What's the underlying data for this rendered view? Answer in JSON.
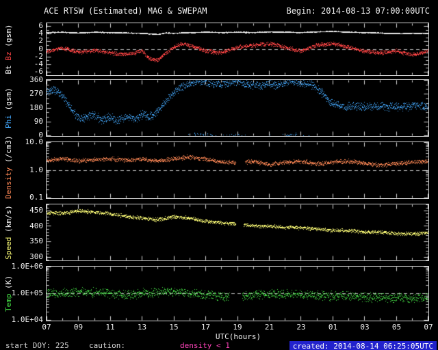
{
  "header": {
    "title": "ACE RTSW (Estimated) MAG & SWEPAM",
    "begin": "Begin: 2014-08-13 07:00:00UTC"
  },
  "footer": {
    "start_doy": "start DOY: 225",
    "caution_label": "caution:",
    "caution_value": "density < 1",
    "caution_color": "#ff44bb",
    "created": "created: 2014-08-14 06:25:05UTC",
    "created_bg": "#2222cc"
  },
  "x_axis": {
    "title": "UTC(hours)",
    "start_hour": 7,
    "end_hour": 31,
    "major_step": 2,
    "minor_step": 1,
    "tick_labels": [
      "07",
      "09",
      "11",
      "13",
      "15",
      "17",
      "19",
      "21",
      "23",
      "01",
      "03",
      "05",
      "07"
    ]
  },
  "colors": {
    "bt": "#eeeeee",
    "bz": "#ff4444",
    "phi": "#44aaff",
    "density": "#ff8855",
    "speed": "#ffff77",
    "temp": "#44dd44",
    "axis": "#d8d8d8",
    "ref_dash": "#bbbbbb"
  },
  "chart_data": [
    {
      "name": "mag",
      "type": "scatter",
      "scale": "linear",
      "ylim": [
        -6.8,
        6.8
      ],
      "minor_step": 1,
      "ref_line": 0,
      "yticks": [
        {
          "v": 6,
          "label": "6"
        },
        {
          "v": 4,
          "label": "4"
        },
        {
          "v": 2,
          "label": "2"
        },
        {
          "v": 0,
          "label": "0"
        },
        {
          "v": -2,
          "label": "-2"
        },
        {
          "v": -4,
          "label": "-4"
        },
        {
          "v": -6,
          "label": "-6"
        }
      ],
      "ylabel_parts": [
        {
          "text": "Bt ",
          "color": "#ffffff"
        },
        {
          "text": "Bz ",
          "color": "#ff4444"
        },
        {
          "text": "(gsm)",
          "color": "#ffffff"
        }
      ],
      "series": [
        {
          "name": "Bt",
          "color": "#eeeeee",
          "points_per_hour": 150,
          "jitter": 0.12,
          "seed": 11,
          "point_size": 1,
          "x": [
            7,
            8,
            9,
            10,
            11,
            12,
            13,
            14,
            14.5,
            15,
            16,
            17,
            18,
            19,
            20,
            21,
            22,
            23,
            24,
            25,
            26,
            27,
            28,
            29,
            30,
            31
          ],
          "y": [
            4.4,
            4.5,
            4.3,
            4.5,
            4.4,
            4.3,
            4.2,
            3.9,
            4.3,
            4.2,
            4.4,
            4.5,
            4.4,
            4.5,
            4.4,
            4.6,
            4.5,
            4.4,
            4.6,
            4.7,
            4.5,
            4.4,
            4.3,
            4.1,
            4.2,
            4.2
          ]
        },
        {
          "name": "Bz",
          "color": "#ff4444",
          "points_per_hour": 80,
          "jitter": 0.65,
          "seed": 22,
          "point_size": 1,
          "x": [
            7,
            8,
            9,
            10,
            11,
            12,
            13,
            13.5,
            14,
            14.5,
            15,
            15.5,
            16,
            17,
            18,
            19,
            20,
            21,
            22,
            23,
            24,
            25,
            26,
            27,
            28,
            29,
            30,
            31
          ],
          "y": [
            -0.5,
            0.3,
            -0.8,
            -0.3,
            -1.0,
            -1.5,
            -0.5,
            -2.5,
            -3.0,
            -1.0,
            0.5,
            1.5,
            1.0,
            -0.5,
            -1.0,
            0.5,
            1.0,
            1.5,
            0.5,
            -0.5,
            1.0,
            1.5,
            0.5,
            -0.5,
            -1.0,
            -0.5,
            -1.5,
            -0.5
          ]
        }
      ]
    },
    {
      "name": "phi",
      "type": "scatter",
      "scale": "linear",
      "ylim": [
        0,
        360
      ],
      "minor_step": 30,
      "yticks": [
        {
          "v": 360,
          "label": "360"
        },
        {
          "v": 270,
          "label": "270"
        },
        {
          "v": 180,
          "label": "180"
        },
        {
          "v": 90,
          "label": "90"
        },
        {
          "v": 0,
          "label": "0"
        }
      ],
      "ylabel_parts": [
        {
          "text": "Phi ",
          "color": "#44aaff"
        },
        {
          "text": "(gsm)",
          "color": "#ffffff"
        }
      ],
      "series": [
        {
          "name": "Phi",
          "color": "#44aaff",
          "points_per_hour": 70,
          "jitter": 32,
          "seed": 33,
          "point_size": 1,
          "wrap": 360,
          "x": [
            7,
            7.5,
            8,
            8.5,
            9,
            9.5,
            10,
            10.5,
            11,
            11.5,
            12,
            12.5,
            13,
            13.5,
            14,
            14.5,
            15,
            15.5,
            16,
            16.5,
            17,
            17.5,
            18,
            18.5,
            19,
            19.5,
            20,
            20.5,
            21,
            21.5,
            22,
            22.5,
            23,
            23.5,
            24,
            24.5,
            25,
            25.5,
            26,
            27,
            28,
            29,
            30,
            31
          ],
          "y": [
            280,
            295,
            260,
            180,
            110,
            120,
            130,
            100,
            120,
            95,
            125,
            105,
            140,
            120,
            160,
            220,
            280,
            320,
            340,
            355,
            350,
            340,
            335,
            345,
            350,
            340,
            330,
            320,
            335,
            330,
            345,
            350,
            340,
            335,
            310,
            260,
            210,
            195,
            190,
            185,
            190,
            185,
            195,
            190
          ]
        }
      ]
    },
    {
      "name": "density",
      "type": "scatter",
      "scale": "log",
      "ylim": [
        0.1,
        10
      ],
      "ref_line": 1.0,
      "yticks": [
        {
          "v": 10,
          "label": "10.0"
        },
        {
          "v": 1,
          "label": "1.0"
        },
        {
          "v": 0.1,
          "label": "0.1"
        }
      ],
      "ylabel_parts": [
        {
          "text": "Density ",
          "color": "#ff8855"
        },
        {
          "text": "(/cm3)",
          "color": "#ffffff"
        }
      ],
      "series": [
        {
          "name": "Density",
          "color": "#ff8855",
          "points_per_hour": 70,
          "jitter": 0.09,
          "seed": 44,
          "point_size": 1,
          "gaps": [
            [
              18.9,
              19.5
            ]
          ],
          "x": [
            7,
            8,
            9,
            10,
            11,
            12,
            13,
            14,
            15,
            16,
            17,
            18,
            19,
            20,
            21,
            22,
            23,
            24,
            25,
            26,
            27,
            28,
            29,
            30,
            31
          ],
          "y": [
            2.2,
            2.6,
            2.1,
            2.4,
            2.6,
            2.3,
            2.5,
            2.1,
            2.6,
            3.0,
            2.5,
            2.0,
            1.8,
            2.1,
            1.6,
            1.9,
            2.1,
            1.7,
            1.9,
            2.1,
            1.8,
            1.5,
            1.7,
            1.9,
            2.1
          ]
        }
      ]
    },
    {
      "name": "speed",
      "type": "scatter",
      "scale": "linear",
      "ylim": [
        290,
        470
      ],
      "minor_step": 10,
      "yticks": [
        {
          "v": 450,
          "label": "450"
        },
        {
          "v": 400,
          "label": "400"
        },
        {
          "v": 350,
          "label": "350"
        },
        {
          "v": 300,
          "label": "300"
        }
      ],
      "ylabel_parts": [
        {
          "text": "Speed ",
          "color": "#ffff77"
        },
        {
          "text": "(km/s)",
          "color": "#ffffff"
        }
      ],
      "series": [
        {
          "name": "Speed",
          "color": "#ffff77",
          "points_per_hour": 70,
          "jitter": 7,
          "seed": 55,
          "point_size": 1,
          "gaps": [
            [
              18.9,
              19.4
            ]
          ],
          "x": [
            7,
            8,
            9,
            10,
            11,
            12,
            13,
            14,
            15,
            16,
            17,
            18,
            19,
            20,
            21,
            22,
            23,
            24,
            25,
            26,
            27,
            28,
            29,
            30,
            31
          ],
          "y": [
            445,
            442,
            450,
            446,
            440,
            432,
            426,
            421,
            431,
            426,
            416,
            411,
            406,
            401,
            400,
            396,
            395,
            391,
            386,
            386,
            381,
            380,
            376,
            375,
            378
          ]
        }
      ]
    },
    {
      "name": "temp",
      "type": "scatter",
      "scale": "log",
      "ylim": [
        10000,
        1000000
      ],
      "ref_line": 100000,
      "yticks": [
        {
          "v": 1000000,
          "label": "1.0E+06"
        },
        {
          "v": 100000,
          "label": "1.0E+05"
        },
        {
          "v": 10000,
          "label": "1.0E+04"
        }
      ],
      "ylabel_parts": [
        {
          "text": "Temp ",
          "color": "#44dd44"
        },
        {
          "text": "(K)",
          "color": "#ffffff"
        }
      ],
      "series": [
        {
          "name": "Temp",
          "color": "#44dd44",
          "points_per_hour": 70,
          "jitter": 0.2,
          "seed": 66,
          "point_size": 1,
          "gaps": [
            [
              18.5,
              19.3
            ]
          ],
          "x": [
            7,
            8,
            9,
            10,
            11,
            12,
            13,
            14,
            15,
            16,
            17,
            18,
            19,
            20,
            21,
            22,
            23,
            24,
            25,
            26,
            27,
            28,
            29,
            30,
            31
          ],
          "y": [
            110000,
            100000,
            120000,
            110000,
            100000,
            90000,
            100000,
            110000,
            120000,
            100000,
            90000,
            80000,
            70000,
            90000,
            100000,
            95000,
            90000,
            85000,
            80000,
            80000,
            75000,
            70000,
            70000,
            65000,
            70000
          ]
        }
      ]
    }
  ]
}
